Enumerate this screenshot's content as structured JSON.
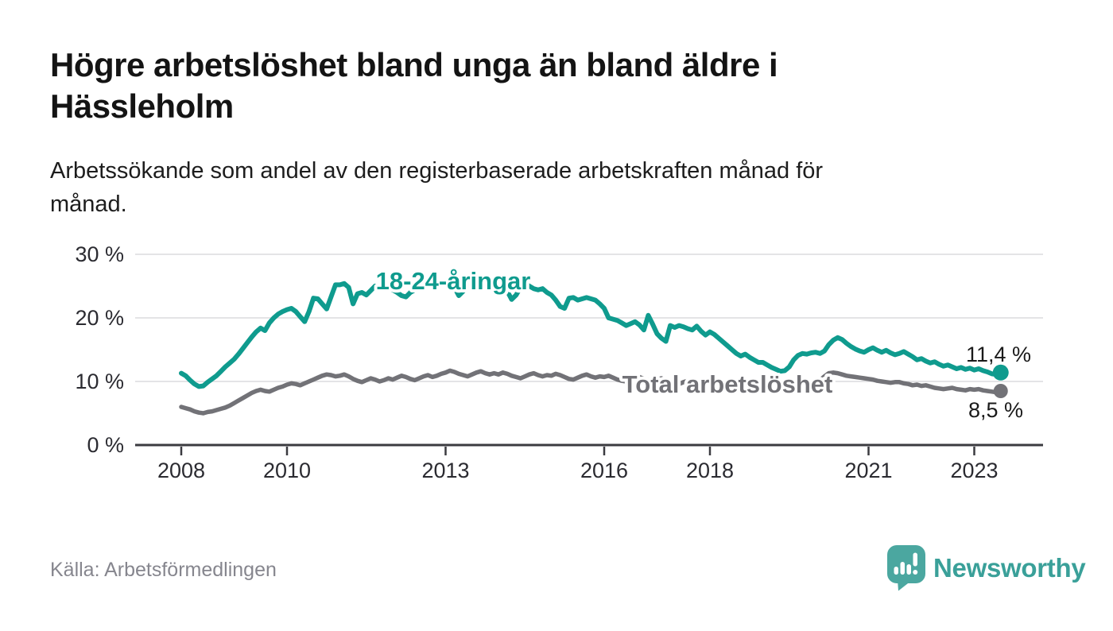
{
  "header": {
    "title": "Högre arbetslöshet bland unga än bland äldre i\nHässleholm",
    "subtitle": "Arbetssökande som andel av den registerbaserade arbetskraften månad för\nmånad."
  },
  "footer": {
    "source": "Källa: Arbetsförmedlingen",
    "brand": "Newsworthy",
    "brand_icon": "speech-bubble-bar-chart-exclamation",
    "brand_color": "#3aa099",
    "brand_icon_color": "#4ba7a0"
  },
  "chart_data": {
    "type": "line",
    "unit": "%",
    "frequency": "monthly",
    "start_year": 2008,
    "start_month": 1,
    "end_year": 2023,
    "end_month": 7,
    "grid": "horizontal",
    "ylim": [
      0,
      32
    ],
    "y_ticks": [
      0,
      10,
      20,
      30
    ],
    "y_tick_labels": [
      "0 %",
      "10 %",
      "20 %",
      "30 %"
    ],
    "x_tick_years": [
      2008,
      2010,
      2013,
      2016,
      2018,
      2021,
      2023
    ],
    "series": [
      {
        "name": "Total arbetslöshet",
        "color": "#727277",
        "end_label": "8,5 %",
        "end_value": 8.5,
        "values": [
          6.0,
          5.8,
          5.6,
          5.3,
          5.1,
          5.0,
          5.2,
          5.3,
          5.5,
          5.7,
          5.9,
          6.2,
          6.6,
          7.0,
          7.4,
          7.8,
          8.2,
          8.5,
          8.7,
          8.5,
          8.4,
          8.7,
          9.0,
          9.2,
          9.5,
          9.7,
          9.6,
          9.4,
          9.7,
          10.0,
          10.3,
          10.6,
          10.9,
          11.1,
          11.0,
          10.8,
          10.9,
          11.1,
          10.8,
          10.4,
          10.1,
          9.9,
          10.2,
          10.5,
          10.3,
          10.0,
          10.2,
          10.5,
          10.3,
          10.6,
          10.9,
          10.7,
          10.4,
          10.2,
          10.5,
          10.8,
          11.0,
          10.7,
          10.9,
          11.2,
          11.4,
          11.7,
          11.5,
          11.2,
          11.0,
          10.8,
          11.1,
          11.4,
          11.6,
          11.3,
          11.1,
          11.3,
          11.1,
          11.4,
          11.2,
          10.9,
          10.7,
          10.5,
          10.8,
          11.1,
          11.3,
          11.0,
          10.8,
          11.0,
          10.9,
          11.2,
          11.0,
          10.7,
          10.4,
          10.3,
          10.6,
          10.9,
          11.1,
          10.8,
          10.6,
          10.8,
          10.7,
          10.9,
          10.6,
          10.3,
          10.1,
          10.0,
          10.2,
          10.5,
          10.7,
          10.4,
          10.2,
          10.4,
          10.3,
          10.5,
          10.2,
          9.9,
          9.7,
          9.6,
          9.9,
          10.1,
          10.3,
          10.0,
          9.8,
          10.0,
          9.9,
          10.1,
          9.8,
          9.5,
          9.3,
          9.2,
          9.4,
          9.7,
          9.9,
          9.6,
          9.4,
          9.6,
          9.5,
          9.7,
          9.4,
          9.2,
          9.0,
          8.9,
          9.1,
          9.4,
          9.6,
          9.4,
          9.3,
          9.5,
          9.8,
          10.2,
          10.8,
          11.3,
          11.4,
          11.3,
          11.1,
          10.9,
          10.8,
          10.7,
          10.6,
          10.5,
          10.4,
          10.3,
          10.1,
          10.0,
          9.9,
          9.8,
          9.9,
          9.9,
          9.7,
          9.6,
          9.4,
          9.5,
          9.3,
          9.4,
          9.2,
          9.0,
          8.9,
          8.8,
          8.9,
          9.0,
          8.8,
          8.7,
          8.6,
          8.8,
          8.7,
          8.8,
          8.6,
          8.5,
          8.4,
          8.3,
          8.5
        ]
      },
      {
        "name": "18-24-åringar",
        "color": "#0f9b8e",
        "end_label": "11,4 %",
        "end_value": 11.4,
        "values": [
          11.3,
          10.9,
          10.2,
          9.6,
          9.2,
          9.3,
          9.9,
          10.4,
          10.9,
          11.6,
          12.3,
          12.9,
          13.5,
          14.3,
          15.2,
          16.1,
          17.0,
          17.8,
          18.4,
          18.0,
          19.2,
          20.0,
          20.6,
          21.0,
          21.3,
          21.5,
          21.0,
          20.2,
          19.4,
          21.0,
          23.1,
          23.0,
          22.2,
          21.4,
          23.3,
          25.2,
          25.2,
          25.4,
          24.8,
          22.2,
          23.8,
          24.0,
          23.6,
          24.3,
          25.0,
          24.6,
          25.3,
          24.8,
          24.4,
          24.0,
          23.5,
          23.3,
          24.0,
          24.4,
          24.8,
          24.6,
          25.1,
          25.5,
          25.9,
          25.3,
          25.8,
          25.6,
          24.8,
          23.5,
          24.2,
          25.0,
          25.2,
          25.4,
          24.6,
          25.0,
          25.2,
          25.4,
          25.2,
          24.8,
          24.2,
          22.9,
          23.6,
          24.8,
          25.4,
          25.0,
          24.6,
          24.4,
          24.6,
          24.0,
          23.6,
          22.8,
          21.8,
          21.5,
          23.1,
          23.2,
          22.8,
          23.0,
          23.2,
          23.0,
          22.8,
          22.2,
          21.5,
          20.0,
          19.8,
          19.6,
          19.2,
          18.8,
          19.1,
          19.4,
          18.9,
          18.1,
          20.4,
          19.0,
          17.5,
          16.8,
          16.3,
          18.8,
          18.5,
          18.8,
          18.6,
          18.3,
          18.1,
          18.7,
          17.9,
          17.3,
          17.8,
          17.4,
          16.8,
          16.2,
          15.6,
          15.0,
          14.4,
          14.0,
          14.3,
          13.8,
          13.4,
          13.0,
          13.0,
          12.6,
          12.2,
          11.9,
          11.6,
          11.7,
          12.3,
          13.4,
          14.1,
          14.4,
          14.3,
          14.5,
          14.6,
          14.4,
          14.8,
          15.8,
          16.5,
          16.9,
          16.6,
          16.0,
          15.5,
          15.1,
          14.8,
          14.6,
          15.0,
          15.3,
          14.9,
          14.6,
          14.9,
          14.5,
          14.2,
          14.4,
          14.7,
          14.3,
          13.9,
          13.4,
          13.6,
          13.2,
          12.9,
          13.1,
          12.7,
          12.4,
          12.6,
          12.3,
          12.0,
          12.2,
          11.9,
          12.1,
          11.8,
          12.0,
          11.7,
          11.5,
          11.2,
          11.1,
          11.4
        ]
      }
    ]
  }
}
